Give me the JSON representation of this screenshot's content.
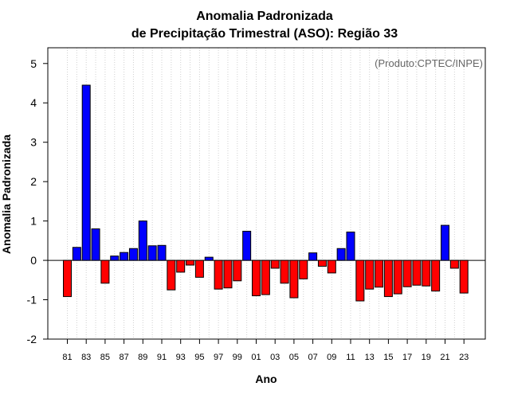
{
  "chart_data": {
    "type": "bar",
    "title_line1": "Anomalia Padronizada",
    "title_line2": "de Precipitação Trimestral (ASO): Região 33",
    "xlabel": "Ano",
    "ylabel": "Anomalia Padronizada",
    "credit": "(Produto:CPTEC/INPE)",
    "ylim": [
      -2,
      5.4
    ],
    "yticks": [
      -2,
      -1,
      0,
      1,
      2,
      3,
      4,
      5
    ],
    "xtick_labels": [
      "81",
      "83",
      "85",
      "87",
      "89",
      "91",
      "93",
      "95",
      "97",
      "99",
      "01",
      "03",
      "05",
      "07",
      "09",
      "11",
      "13",
      "15",
      "17",
      "19",
      "21",
      "23"
    ],
    "categories": [
      "1981",
      "1982",
      "1983",
      "1984",
      "1985",
      "1986",
      "1987",
      "1988",
      "1989",
      "1990",
      "1991",
      "1992",
      "1993",
      "1994",
      "1995",
      "1996",
      "1997",
      "1998",
      "1999",
      "2000",
      "2001",
      "2002",
      "2003",
      "2004",
      "2005",
      "2006",
      "2007",
      "2008",
      "2009",
      "2010",
      "2011",
      "2012",
      "2013",
      "2014",
      "2015",
      "2016",
      "2017",
      "2018",
      "2019",
      "2020",
      "2021",
      "2022",
      "2023"
    ],
    "values": [
      -0.92,
      0.33,
      4.45,
      0.8,
      -0.58,
      0.11,
      0.2,
      0.3,
      1.0,
      0.37,
      0.38,
      -0.75,
      -0.3,
      -0.12,
      -0.43,
      0.08,
      -0.73,
      -0.7,
      -0.52,
      0.74,
      -0.9,
      -0.87,
      -0.2,
      -0.58,
      -0.95,
      -0.47,
      0.19,
      -0.15,
      -0.32,
      0.3,
      0.72,
      -1.03,
      -0.73,
      -0.68,
      -0.92,
      -0.85,
      -0.67,
      -0.63,
      -0.65,
      -0.78,
      0.89,
      -0.2,
      -0.83
    ],
    "positive_color": "#0000ff",
    "negative_color": "#ff0000",
    "grid": "vertical dotted",
    "zero_line": true
  }
}
